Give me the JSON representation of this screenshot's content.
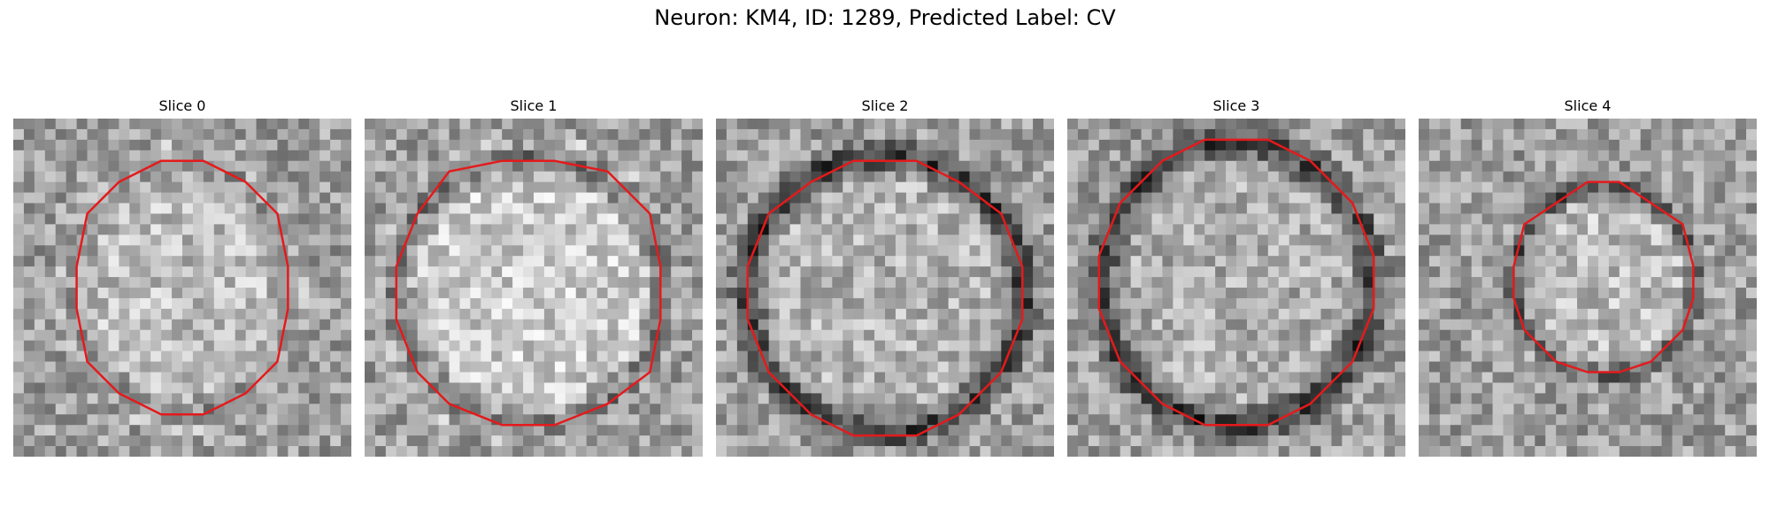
{
  "figure": {
    "title": "Neuron: KM4, ID: 1289, Predicted Label: CV"
  },
  "panels": [
    {
      "title": "Slice 0",
      "seed": 11,
      "center": [
        0.5,
        0.5
      ],
      "radius": [
        0.32,
        0.37
      ],
      "ring_darkness": 0.18,
      "interior": 0.74,
      "outline_color": "#e41a1c"
    },
    {
      "title": "Slice 1",
      "seed": 23,
      "center": [
        0.49,
        0.51
      ],
      "radius": [
        0.4,
        0.4
      ],
      "ring_darkness": 0.35,
      "interior": 0.8,
      "outline_color": "#e41a1c"
    },
    {
      "title": "Slice 2",
      "seed": 37,
      "center": [
        0.5,
        0.52
      ],
      "radius": [
        0.41,
        0.41
      ],
      "ring_darkness": 0.5,
      "interior": 0.7,
      "outline_color": "#e41a1c"
    },
    {
      "title": "Slice 3",
      "seed": 49,
      "center": [
        0.5,
        0.49
      ],
      "radius": [
        0.4,
        0.42
      ],
      "ring_darkness": 0.48,
      "interior": 0.68,
      "outline_color": "#e41a1c"
    },
    {
      "title": "Slice 4",
      "seed": 61,
      "center": [
        0.55,
        0.48
      ],
      "radius": [
        0.27,
        0.28
      ],
      "ring_darkness": 0.42,
      "interior": 0.74,
      "outline_color": "#e41a1c"
    }
  ]
}
